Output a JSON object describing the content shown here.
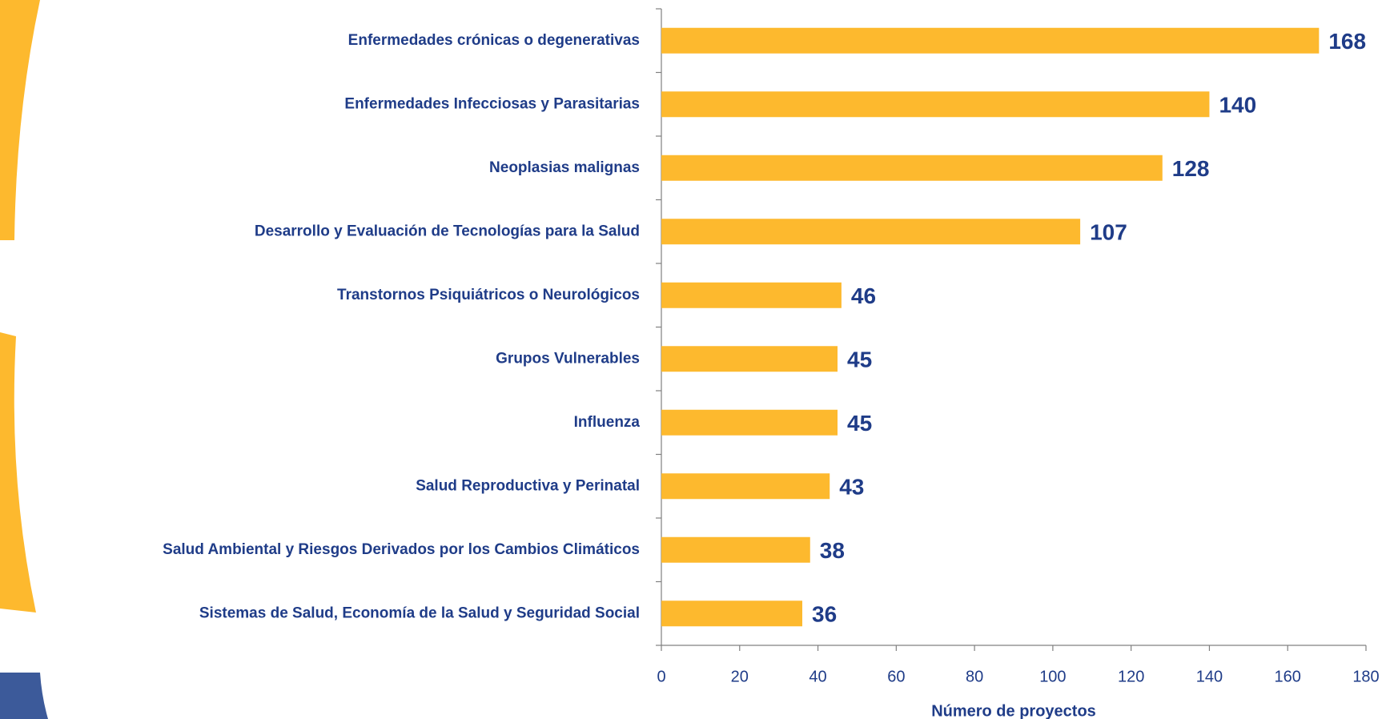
{
  "chart_data": {
    "type": "barh",
    "x_label": "Número de proyectos",
    "categories": [
      "Enfermedades crónicas o degenerativas",
      "Enfermedades Infecciosas y Parasitarias",
      "Neoplasias malignas",
      "Desarrollo y Evaluación de Tecnologías para la Salud",
      "Transtornos Psiquiátricos o Neurológicos",
      "Grupos Vulnerables",
      "Influenza",
      "Salud Reproductiva y Perinatal",
      "Salud Ambiental y Riesgos Derivados por los Cambios Climáticos",
      "Sistemas de Salud, Economía de la Salud y Seguridad Social"
    ],
    "values": [
      168,
      140,
      128,
      107,
      46,
      45,
      45,
      43,
      38,
      36
    ],
    "color": "#fdb92e",
    "xlim": [
      0,
      180
    ],
    "xticks": [
      0,
      20,
      40,
      60,
      80,
      100,
      120,
      140,
      160,
      180
    ],
    "grid": false
  }
}
